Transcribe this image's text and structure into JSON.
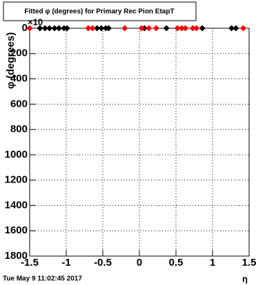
{
  "chart_data": {
    "type": "scatter",
    "title": "Fitted φ (degrees) for Primary Rec Pion EtapT",
    "x_label": "η",
    "y_label": "φ (degrees)",
    "y_exponent": "×10",
    "timestamp": "Tue May  9 11:02:45 2017",
    "grid": true,
    "xlim": [
      -1.5,
      1.5
    ],
    "xticks": [
      -1.5,
      -1,
      -0.5,
      0,
      0.5,
      1,
      1.5
    ],
    "ylim": [
      -1800,
      0
    ],
    "yticks": [
      {
        "value": 0,
        "label": "0"
      },
      {
        "value": -200,
        "label": "200"
      },
      {
        "value": -400,
        "label": "400"
      },
      {
        "value": -600,
        "label": "600"
      },
      {
        "value": -800,
        "label": "800"
      },
      {
        "value": -1000,
        "label": "1000"
      },
      {
        "value": -1200,
        "label": "1200"
      },
      {
        "value": -1400,
        "label": "1400"
      },
      {
        "value": -1600,
        "label": "1600"
      },
      {
        "value": -1800,
        "label": "1800"
      }
    ],
    "series": [
      {
        "color": "#000000",
        "x": [
          -1.36,
          -1.29,
          -1.23,
          -1.16,
          -1.1,
          -1.03,
          -0.99,
          -0.58,
          -0.52,
          -0.46,
          -0.42,
          0.07,
          0.37,
          0.86,
          1.26,
          1.32
        ],
        "values": [
          0,
          0,
          0,
          0,
          0,
          0,
          0,
          0,
          0,
          0,
          0,
          0,
          0,
          0,
          0,
          0
        ]
      },
      {
        "color": "#ff0000",
        "x": [
          -1.5,
          -0.7,
          -0.64,
          -0.2,
          0.03,
          0.13,
          0.23,
          0.52,
          0.58,
          0.63,
          0.73,
          0.78,
          1.42
        ],
        "values": [
          0,
          0,
          0,
          0,
          0,
          0,
          0,
          0,
          0,
          0,
          0,
          0,
          0
        ]
      }
    ]
  }
}
